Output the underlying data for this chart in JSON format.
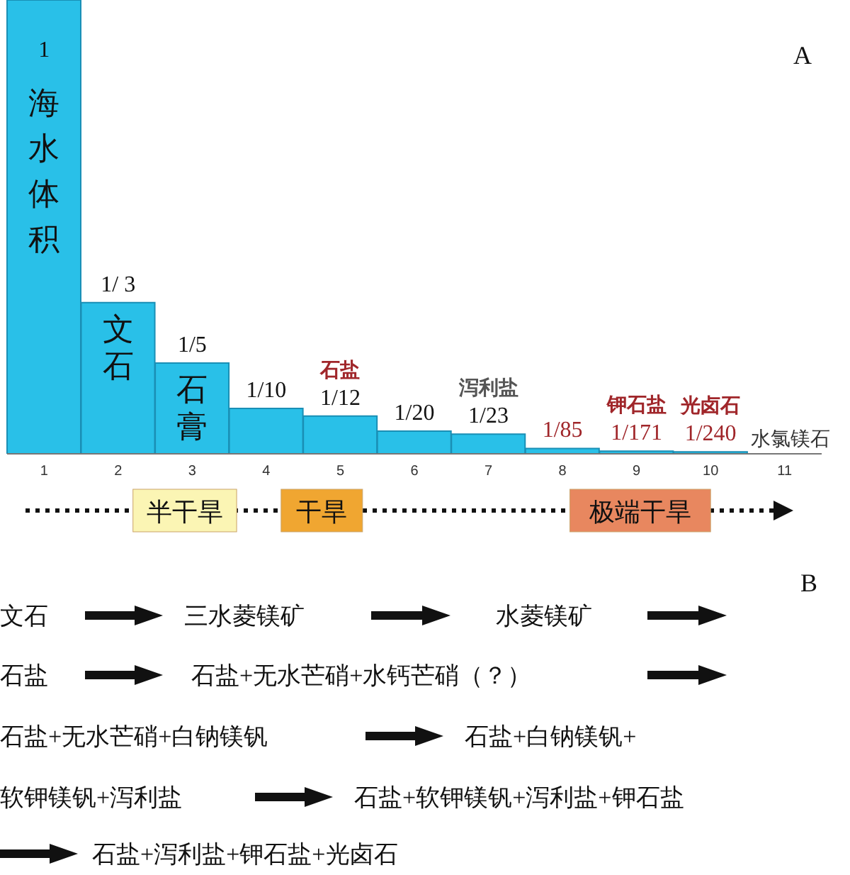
{
  "chart_data": [
    {
      "type": "bar",
      "categories": [
        "1",
        "2",
        "3",
        "4",
        "5",
        "6",
        "7",
        "8",
        "9",
        "10",
        "11"
      ],
      "color": "#29c0e8",
      "values": [
        1,
        0.3333,
        0.2,
        0.1,
        0.0833,
        0.05,
        0.0435,
        0.0118,
        0.0058,
        0.0042,
        null
      ],
      "value_labels": [
        "1",
        "1/ 3",
        "1/5",
        "1/10",
        "1/12",
        "1/20",
        "1/23",
        "1/85",
        "1/171",
        "1/240",
        null
      ],
      "annotations": [
        "海水体积",
        "文石",
        "石膏",
        "石盐",
        "泻利盐",
        "钾石盐",
        "光卤石",
        "水氯镁石",
        "半干旱",
        "干旱",
        "极端干旱",
        "A"
      ]
    },
    {
      "type": "other",
      "annotations": [
        "B",
        "文石",
        "三水菱镁矿",
        "水菱镁矿",
        "石盐",
        "石盐+无水芒硝+水钙芒硝（？）",
        "石盐+无水芒硝+白钠镁钒",
        "石盐+白钠镁钒+",
        "软钾镁钒+泻利盐",
        "石盐+软钾镁钒+泻利盐+钾石盐",
        "石盐+泻利盐+钾石盐+光卤石"
      ]
    }
  ]
}
